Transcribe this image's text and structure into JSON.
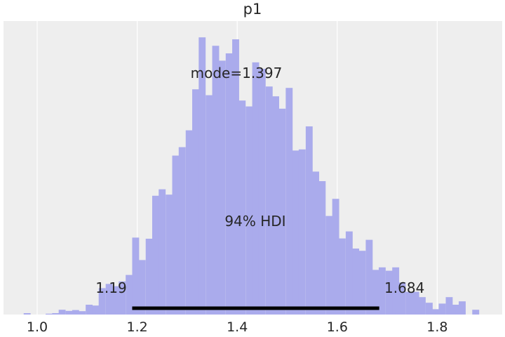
{
  "chart_data": {
    "type": "bar",
    "title": "p1",
    "xlabel": "",
    "ylabel": "",
    "xlim": [
      0.93,
      1.93
    ],
    "xticks": [
      "1.0",
      "1.2",
      "1.4",
      "1.6",
      "1.8"
    ],
    "grid": true,
    "colors": {
      "bars": "#aaabec",
      "background": "#eeeeee",
      "hdi_line": "#000000",
      "grid": "#ffffff"
    },
    "bin_width": 0.0133,
    "bins": [
      {
        "x0": 0.973,
        "h": 0.005
      },
      {
        "x0": 1.017,
        "h": 0.003
      },
      {
        "x0": 1.03,
        "h": 0.005
      },
      {
        "x0": 1.043,
        "h": 0.017
      },
      {
        "x0": 1.057,
        "h": 0.013
      },
      {
        "x0": 1.07,
        "h": 0.016
      },
      {
        "x0": 1.083,
        "h": 0.012
      },
      {
        "x0": 1.097,
        "h": 0.035
      },
      {
        "x0": 1.11,
        "h": 0.032
      },
      {
        "x0": 1.123,
        "h": 0.094
      },
      {
        "x0": 1.137,
        "h": 0.109
      },
      {
        "x0": 1.15,
        "h": 0.101
      },
      {
        "x0": 1.163,
        "h": 0.118
      },
      {
        "x0": 1.177,
        "h": 0.141
      },
      {
        "x0": 1.19,
        "h": 0.274
      },
      {
        "x0": 1.203,
        "h": 0.194
      },
      {
        "x0": 1.217,
        "h": 0.27
      },
      {
        "x0": 1.23,
        "h": 0.423
      },
      {
        "x0": 1.243,
        "h": 0.446
      },
      {
        "x0": 1.257,
        "h": 0.427
      },
      {
        "x0": 1.27,
        "h": 0.566
      },
      {
        "x0": 1.283,
        "h": 0.596
      },
      {
        "x0": 1.297,
        "h": 0.656
      },
      {
        "x0": 1.31,
        "h": 0.802
      },
      {
        "x0": 1.323,
        "h": 0.987
      },
      {
        "x0": 1.337,
        "h": 0.781
      },
      {
        "x0": 1.35,
        "h": 0.957
      },
      {
        "x0": 1.363,
        "h": 0.904
      },
      {
        "x0": 1.377,
        "h": 0.93
      },
      {
        "x0": 1.39,
        "h": 0.98
      },
      {
        "x0": 1.403,
        "h": 0.762
      },
      {
        "x0": 1.417,
        "h": 0.741
      },
      {
        "x0": 1.43,
        "h": 0.898
      },
      {
        "x0": 1.443,
        "h": 0.875
      },
      {
        "x0": 1.457,
        "h": 0.812
      },
      {
        "x0": 1.47,
        "h": 0.777
      },
      {
        "x0": 1.483,
        "h": 0.733
      },
      {
        "x0": 1.497,
        "h": 0.807
      },
      {
        "x0": 1.51,
        "h": 0.584
      },
      {
        "x0": 1.523,
        "h": 0.588
      },
      {
        "x0": 1.537,
        "h": 0.67
      },
      {
        "x0": 1.55,
        "h": 0.509
      },
      {
        "x0": 1.563,
        "h": 0.475
      },
      {
        "x0": 1.577,
        "h": 0.351
      },
      {
        "x0": 1.59,
        "h": 0.412
      },
      {
        "x0": 1.603,
        "h": 0.271
      },
      {
        "x0": 1.617,
        "h": 0.296
      },
      {
        "x0": 1.63,
        "h": 0.235
      },
      {
        "x0": 1.643,
        "h": 0.227
      },
      {
        "x0": 1.657,
        "h": 0.266
      },
      {
        "x0": 1.67,
        "h": 0.159
      },
      {
        "x0": 1.683,
        "h": 0.168
      },
      {
        "x0": 1.697,
        "h": 0.156
      },
      {
        "x0": 1.71,
        "h": 0.168
      },
      {
        "x0": 1.723,
        "h": 0.114
      },
      {
        "x0": 1.737,
        "h": 0.081
      },
      {
        "x0": 1.75,
        "h": 0.081
      },
      {
        "x0": 1.763,
        "h": 0.062
      },
      {
        "x0": 1.777,
        "h": 0.042
      },
      {
        "x0": 1.79,
        "h": 0.019
      },
      {
        "x0": 1.803,
        "h": 0.039
      },
      {
        "x0": 1.817,
        "h": 0.062
      },
      {
        "x0": 1.83,
        "h": 0.035
      },
      {
        "x0": 1.843,
        "h": 0.047
      },
      {
        "x0": 1.87,
        "h": 0.017
      }
    ],
    "mode_label": "mode=1.397",
    "hdi": {
      "label": "94% HDI",
      "low": 1.19,
      "high": 1.684,
      "low_label": "1.19",
      "high_label": "1.684"
    }
  }
}
